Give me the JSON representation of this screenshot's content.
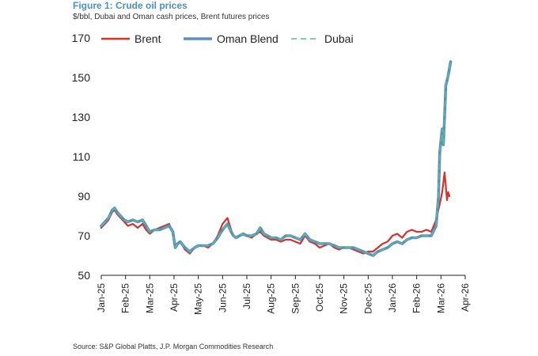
{
  "header": {
    "title": "Figure 1: Crude oil prices",
    "subtitle": "$/bbl, Dubai and Oman cash prices, Brent futures prices"
  },
  "footer": {
    "source": "Source: S&P Global Platts, J.P. Morgan Commodities Research"
  },
  "chart_data": {
    "type": "line",
    "title": "Crude oil prices",
    "ylabel": "$/bbl",
    "xlabel": "",
    "ylim": [
      50,
      170
    ],
    "yticks": [
      50,
      70,
      90,
      110,
      130,
      150,
      170
    ],
    "xlim": [
      0,
      15
    ],
    "xticks": [
      "Jan-25",
      "Feb-25",
      "Mar-25",
      "Apr-25",
      "May-25",
      "Jun-25",
      "Jul-25",
      "Aug-25",
      "Sep-25",
      "Oct-25",
      "Nov-25",
      "Dec-25",
      "Jan-26",
      "Feb-26",
      "Mar-26",
      "Apr-26"
    ],
    "legend_position": "top",
    "colors": {
      "brent": "#d7312b",
      "oman": "#5b8fbf",
      "dubai": "#5cbf8e"
    },
    "series": [
      {
        "name": "Brent",
        "style": "solid",
        "x": [
          0,
          0.15,
          0.3,
          0.45,
          0.55,
          0.65,
          0.8,
          0.95,
          1.1,
          1.3,
          1.5,
          1.7,
          1.85,
          2.0,
          2.2,
          2.4,
          2.6,
          2.8,
          2.95,
          3.05,
          3.15,
          3.25,
          3.45,
          3.65,
          3.85,
          4.0,
          4.2,
          4.4,
          4.6,
          4.8,
          5.0,
          5.2,
          5.35,
          5.45,
          5.55,
          5.7,
          5.85,
          6.0,
          6.2,
          6.4,
          6.55,
          6.7,
          6.85,
          7.0,
          7.2,
          7.4,
          7.6,
          7.8,
          8.0,
          8.2,
          8.4,
          8.6,
          8.8,
          9.0,
          9.2,
          9.4,
          9.6,
          9.8,
          10.0,
          10.2,
          10.4,
          10.6,
          10.8,
          11.0,
          11.2,
          11.4,
          11.6,
          11.8,
          12.0,
          12.2,
          12.4,
          12.6,
          12.8,
          13.0,
          13.2,
          13.4,
          13.6,
          13.8,
          13.95,
          14.05,
          14.15,
          14.2,
          14.25,
          14.3,
          14.35
        ],
        "values": [
          74,
          76,
          78,
          82,
          83,
          81,
          79,
          77,
          75,
          76,
          74,
          76,
          73,
          71,
          73,
          74,
          75,
          76,
          71,
          64,
          66,
          67,
          63,
          61,
          64,
          65,
          65,
          64,
          66,
          70,
          76,
          79,
          73,
          70,
          69,
          70,
          71,
          70,
          69,
          71,
          72,
          70,
          69,
          68,
          68,
          67,
          68,
          68,
          67,
          66,
          70,
          67,
          66,
          64,
          65,
          66,
          64,
          63,
          64,
          64,
          63,
          62,
          61,
          62,
          62,
          64,
          66,
          67,
          70,
          71,
          69,
          72,
          73,
          72,
          72,
          73,
          72,
          78,
          86,
          92,
          102,
          95,
          88,
          92,
          90
        ]
      },
      {
        "name": "Oman Blend",
        "style": "solid",
        "x": [
          0,
          0.15,
          0.3,
          0.45,
          0.55,
          0.65,
          0.8,
          0.95,
          1.1,
          1.3,
          1.5,
          1.7,
          1.85,
          2.0,
          2.2,
          2.4,
          2.6,
          2.8,
          2.95,
          3.05,
          3.15,
          3.25,
          3.45,
          3.65,
          3.85,
          4.0,
          4.2,
          4.4,
          4.6,
          4.8,
          5.0,
          5.2,
          5.35,
          5.45,
          5.55,
          5.7,
          5.85,
          6.0,
          6.2,
          6.4,
          6.55,
          6.7,
          6.85,
          7.0,
          7.2,
          7.4,
          7.6,
          7.8,
          8.0,
          8.2,
          8.4,
          8.6,
          8.8,
          9.0,
          9.2,
          9.4,
          9.6,
          9.8,
          10.0,
          10.2,
          10.4,
          10.6,
          10.8,
          11.0,
          11.2,
          11.4,
          11.6,
          11.8,
          12.0,
          12.2,
          12.4,
          12.6,
          12.8,
          13.0,
          13.2,
          13.4,
          13.6,
          13.8,
          13.9,
          13.95,
          14.0,
          14.05,
          14.1,
          14.15,
          14.2,
          14.3,
          14.4
        ],
        "values": [
          75,
          77,
          79,
          83,
          84,
          82,
          80,
          78,
          77,
          78,
          77,
          78,
          75,
          72,
          73,
          73,
          74,
          75,
          72,
          64,
          66,
          67,
          64,
          62,
          64,
          65,
          65,
          65,
          66,
          69,
          73,
          76,
          72,
          70,
          69,
          70,
          71,
          70,
          70,
          71,
          74,
          71,
          70,
          69,
          69,
          68,
          70,
          70,
          69,
          68,
          71,
          68,
          67,
          66,
          66,
          66,
          65,
          64,
          64,
          64,
          64,
          63,
          62,
          61,
          60,
          62,
          63,
          64,
          66,
          67,
          66,
          68,
          69,
          69,
          70,
          70,
          70,
          75,
          90,
          112,
          118,
          124,
          116,
          130,
          146,
          151,
          158
        ]
      },
      {
        "name": "Dubai",
        "style": "dashed",
        "x": [
          0,
          0.15,
          0.3,
          0.45,
          0.55,
          0.65,
          0.8,
          0.95,
          1.1,
          1.3,
          1.5,
          1.7,
          1.85,
          2.0,
          2.2,
          2.4,
          2.6,
          2.8,
          2.95,
          3.05,
          3.15,
          3.25,
          3.45,
          3.65,
          3.85,
          4.0,
          4.2,
          4.4,
          4.6,
          4.8,
          5.0,
          5.2,
          5.35,
          5.45,
          5.55,
          5.7,
          5.85,
          6.0,
          6.2,
          6.4,
          6.55,
          6.7,
          6.85,
          7.0,
          7.2,
          7.4,
          7.6,
          7.8,
          8.0,
          8.2,
          8.4,
          8.6,
          8.8,
          9.0,
          9.2,
          9.4,
          9.6,
          9.8,
          10.0,
          10.2,
          10.4,
          10.6,
          10.8,
          11.0,
          11.2,
          11.4,
          11.6,
          11.8,
          12.0,
          12.2,
          12.4,
          12.6,
          12.8,
          13.0,
          13.2,
          13.4,
          13.6,
          13.8,
          13.9,
          13.95,
          14.0,
          14.05,
          14.1,
          14.15,
          14.2,
          14.3,
          14.4
        ],
        "values": [
          75,
          77,
          79,
          83,
          84,
          82,
          80,
          78,
          77,
          78,
          77,
          78,
          75,
          72,
          73,
          73,
          74,
          75,
          72,
          64,
          66,
          67,
          64,
          62,
          64,
          65,
          65,
          65,
          66,
          69,
          73,
          76,
          72,
          70,
          69,
          70,
          71,
          70,
          70,
          71,
          74,
          71,
          70,
          69,
          69,
          68,
          70,
          70,
          69,
          68,
          71,
          68,
          67,
          66,
          66,
          66,
          65,
          64,
          64,
          64,
          64,
          63,
          62,
          61,
          60,
          62,
          63,
          64,
          66,
          67,
          66,
          68,
          69,
          69,
          70,
          70,
          70,
          75,
          90,
          112,
          118,
          124,
          116,
          130,
          146,
          151,
          158
        ]
      }
    ]
  }
}
